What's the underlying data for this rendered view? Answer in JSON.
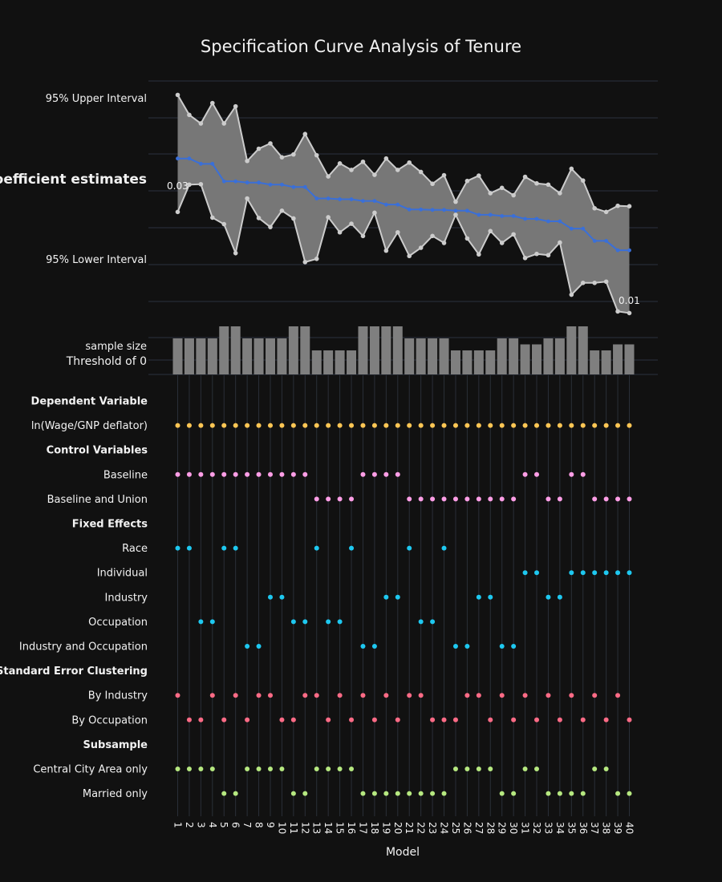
{
  "chart_data": {
    "type": "specification-curve",
    "title": "Specification Curve Analysis of Tenure",
    "xlabel": "Model",
    "ylabel_top": "coefficient estimates",
    "upper_label": "95% Upper Interval",
    "lower_label": "95% Lower Interval",
    "sample_size_label": "sample size",
    "threshold_label": "Threshold of 0",
    "first_value_label": "0.03",
    "last_value_label": "0.01",
    "colors": {
      "background": "#111111",
      "grid": "#2a3140",
      "band": "#777777",
      "ci_line": "#cccccc",
      "estimate": "#3a6fd8",
      "bars": "#7f7f7f",
      "dependent": "#ffc654",
      "controls": "#ff9ee6",
      "fixed_effects": "#1ec8f0",
      "clustering": "#ff6b86",
      "subsample": "#b6e880"
    },
    "models": [
      "1",
      "2",
      "3",
      "4",
      "5",
      "6",
      "7",
      "8",
      "9",
      "10",
      "11",
      "12",
      "13",
      "14",
      "15",
      "16",
      "17",
      "18",
      "19",
      "20",
      "21",
      "22",
      "23",
      "24",
      "25",
      "26",
      "27",
      "28",
      "29",
      "30",
      "31",
      "32",
      "33",
      "34",
      "35",
      "36",
      "37",
      "38",
      "39",
      "40"
    ],
    "estimate": [
      0.031,
      0.031,
      0.0297,
      0.0297,
      0.0254,
      0.0254,
      0.0251,
      0.0251,
      0.0246,
      0.0246,
      0.024,
      0.024,
      0.0212,
      0.0212,
      0.021,
      0.021,
      0.0206,
      0.0206,
      0.0197,
      0.0197,
      0.0185,
      0.0185,
      0.0184,
      0.0184,
      0.0182,
      0.0182,
      0.0172,
      0.0172,
      0.0169,
      0.0169,
      0.0162,
      0.0162,
      0.0156,
      0.0156,
      0.0138,
      0.0138,
      0.0108,
      0.0108,
      0.0085,
      0.0085
    ],
    "upper": [
      0.0466,
      0.0417,
      0.0396,
      0.0446,
      0.0396,
      0.0438,
      0.0304,
      0.0334,
      0.0347,
      0.0313,
      0.032,
      0.037,
      0.0318,
      0.0266,
      0.0298,
      0.0282,
      0.0302,
      0.027,
      0.031,
      0.0282,
      0.03,
      0.0277,
      0.0248,
      0.0269,
      0.0204,
      0.0255,
      0.0268,
      0.0225,
      0.0238,
      0.022,
      0.0265,
      0.0249,
      0.0246,
      0.0225,
      0.0285,
      0.0256,
      0.0188,
      0.0179,
      0.0194,
      0.0193
    ],
    "lower": [
      0.0179,
      0.0246,
      0.0247,
      0.0165,
      0.0149,
      0.0078,
      0.0212,
      0.0164,
      0.0142,
      0.0182,
      0.0163,
      0.0056,
      0.0064,
      0.0166,
      0.0129,
      0.015,
      0.012,
      0.0177,
      0.0084,
      0.0129,
      0.0071,
      0.0091,
      0.012,
      0.0103,
      0.0172,
      0.0114,
      0.0075,
      0.0132,
      0.0103,
      0.0124,
      0.0066,
      0.0076,
      0.0073,
      0.0104,
      -0.0024,
      0.0005,
      0.0005,
      0.0008,
      -0.0065,
      -0.0069
    ],
    "ylim": [
      -0.0135,
      0.051
    ],
    "sample_size": [
      3,
      3,
      3,
      3,
      4,
      4,
      3,
      3,
      3,
      3,
      4,
      4,
      2,
      2,
      2,
      2,
      4,
      4,
      4,
      4,
      3,
      3,
      3,
      3,
      2,
      2,
      2,
      2,
      3,
      3,
      2.5,
      2.5,
      3,
      3,
      4,
      4,
      2,
      2,
      2.5,
      2.5
    ],
    "groups": [
      {
        "title": "Dependent Variable",
        "color_key": "dependent",
        "rows": [
          {
            "label": "ln(Wage/GNP deflator)",
            "models": [
              1,
              2,
              3,
              4,
              5,
              6,
              7,
              8,
              9,
              10,
              11,
              12,
              13,
              14,
              15,
              16,
              17,
              18,
              19,
              20,
              21,
              22,
              23,
              24,
              25,
              26,
              27,
              28,
              29,
              30,
              31,
              32,
              33,
              34,
              35,
              36,
              37,
              38,
              39,
              40
            ]
          }
        ]
      },
      {
        "title": "Control Variables",
        "color_key": "controls",
        "rows": [
          {
            "label": "Baseline",
            "models": [
              1,
              2,
              3,
              4,
              5,
              6,
              7,
              8,
              9,
              10,
              11,
              12,
              17,
              18,
              19,
              20,
              31,
              32,
              35,
              36
            ]
          },
          {
            "label": "Baseline and Union",
            "models": [
              13,
              14,
              15,
              16,
              21,
              22,
              23,
              24,
              25,
              26,
              27,
              28,
              29,
              30,
              33,
              34,
              37,
              38,
              39,
              40
            ]
          }
        ]
      },
      {
        "title": "Fixed Effects",
        "color_key": "fixed_effects",
        "rows": [
          {
            "label": "Race",
            "models": [
              1,
              2,
              5,
              6,
              13,
              16,
              21,
              24
            ]
          },
          {
            "label": "Individual",
            "models": [
              31,
              32,
              35,
              36,
              37,
              38,
              39,
              40
            ]
          },
          {
            "label": "Industry",
            "models": [
              9,
              10,
              19,
              20,
              27,
              28,
              33,
              34
            ]
          },
          {
            "label": "Occupation",
            "models": [
              3,
              4,
              11,
              12,
              14,
              15,
              22,
              23
            ]
          },
          {
            "label": "Industry and Occupation",
            "models": [
              7,
              8,
              17,
              18,
              25,
              26,
              29,
              30
            ]
          }
        ]
      },
      {
        "title": "Standard Error Clustering",
        "color_key": "clustering",
        "rows": [
          {
            "label": "By Industry",
            "models": [
              1,
              4,
              6,
              8,
              9,
              12,
              13,
              15,
              17,
              19,
              21,
              22,
              26,
              27,
              29,
              31,
              33,
              35,
              37,
              39
            ]
          },
          {
            "label": "By Occupation",
            "models": [
              2,
              3,
              5,
              7,
              10,
              11,
              14,
              16,
              18,
              20,
              23,
              24,
              25,
              28,
              30,
              32,
              34,
              36,
              38,
              40
            ]
          }
        ]
      },
      {
        "title": "Subsample",
        "color_key": "subsample",
        "rows": [
          {
            "label": "Central City Area only",
            "models": [
              1,
              2,
              3,
              4,
              7,
              8,
              9,
              10,
              13,
              14,
              15,
              16,
              25,
              26,
              27,
              28,
              31,
              32,
              37,
              38
            ]
          },
          {
            "label": "Married only",
            "models": [
              5,
              6,
              11,
              12,
              17,
              18,
              19,
              20,
              21,
              22,
              23,
              24,
              29,
              30,
              33,
              34,
              35,
              36,
              39,
              40
            ]
          }
        ]
      }
    ]
  }
}
